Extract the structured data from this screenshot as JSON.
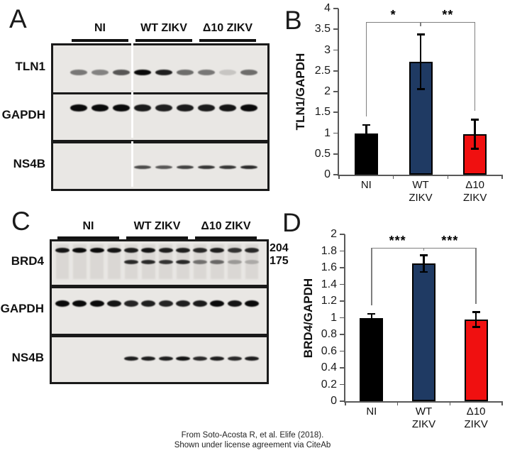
{
  "figure": {
    "footer_line1": "From Soto-Acosta R, et al. Elife (2018).",
    "footer_line2": "Shown under license agreement via CiteAb"
  },
  "colors": {
    "bar_black": "#000000",
    "bar_blue": "#1f3a63",
    "bar_red": "#f01010",
    "axis_gray": "#595959",
    "bracket_gray": "#7f7f7f",
    "blot_background": "#e9e7e4"
  },
  "panel_a": {
    "label": "A",
    "groups": [
      {
        "name": "NI",
        "lanes": 3
      },
      {
        "name": "WT ZIKV",
        "lanes": 3
      },
      {
        "name": "Δ10 ZIKV",
        "lanes": 3
      }
    ],
    "rows": [
      {
        "target": "TLN1",
        "band_rows": [
          {
            "y": 0.62,
            "h": 8,
            "intensities": [
              0.5,
              0.45,
              0.65,
              1.0,
              0.9,
              0.55,
              0.5,
              0.15,
              0.55
            ]
          }
        ]
      },
      {
        "target": "GAPDH",
        "band_rows": [
          {
            "y": 0.34,
            "h": 10,
            "intensities": [
              1.0,
              1.0,
              1.0,
              0.92,
              0.9,
              0.92,
              0.92,
              0.95,
              1.0
            ]
          }
        ]
      },
      {
        "target": "NS4B",
        "band_rows": [
          {
            "y": 0.57,
            "h": 5,
            "intensities": [
              0,
              0,
              0,
              0.7,
              0.65,
              0.75,
              0.8,
              0.8,
              0.85
            ]
          }
        ]
      }
    ]
  },
  "panel_c": {
    "label": "C",
    "mw_labels": [
      "204",
      "175"
    ],
    "groups": [
      {
        "name": "NI",
        "lanes": 4
      },
      {
        "name": "WT ZIKV",
        "lanes": 4
      },
      {
        "name": "Δ10 ZIKV",
        "lanes": 4
      }
    ],
    "rows": [
      {
        "target": "BRD4",
        "lane_streaks": true,
        "band_rows": [
          {
            "y": 0.26,
            "h": 7,
            "intensities": [
              0.95,
              1.0,
              1.0,
              0.95,
              0.9,
              0.95,
              0.9,
              0.9,
              0.85,
              0.9,
              0.8,
              0.85
            ]
          },
          {
            "y": 0.52,
            "h": 6,
            "intensities": [
              0,
              0,
              0,
              0,
              0.85,
              0.85,
              0.8,
              0.85,
              0.5,
              0.55,
              0.3,
              0.22
            ]
          }
        ]
      },
      {
        "target": "GAPDH",
        "band_rows": [
          {
            "y": 0.38,
            "h": 9,
            "intensities": [
              1.0,
              1.0,
              1.0,
              0.95,
              0.88,
              0.9,
              0.88,
              0.9,
              0.92,
              1.0,
              0.95,
              1.0
            ]
          }
        ]
      },
      {
        "target": "NS4B",
        "band_rows": [
          {
            "y": 0.52,
            "h": 6,
            "intensities": [
              0,
              0,
              0,
              0,
              0.9,
              0.9,
              0.9,
              0.95,
              0.85,
              0.9,
              0.85,
              0.9
            ]
          }
        ]
      }
    ]
  },
  "chart_data": [
    {
      "type": "bar",
      "panel": "B",
      "title": "",
      "categories": [
        "NI",
        "WT\nZIKV",
        "Δ10\nZIKV"
      ],
      "values": [
        1.0,
        2.72,
        0.98
      ],
      "errors": [
        0.2,
        0.66,
        0.35
      ],
      "bar_colors": [
        "#000000",
        "#1f3a63",
        "#f01010"
      ],
      "xlabel": "",
      "ylabel": "TLN1/GAPDH",
      "ylim": [
        0,
        4
      ],
      "ytick_step": 0.5,
      "grid": false,
      "legend": "none",
      "significance": [
        {
          "from": 0,
          "to": 1,
          "label": "*"
        },
        {
          "from": 1,
          "to": 2,
          "label": "**"
        }
      ]
    },
    {
      "type": "bar",
      "panel": "D",
      "title": "",
      "categories": [
        "NI",
        "WT\nZIKV",
        "Δ10\nZIKV"
      ],
      "values": [
        1.0,
        1.65,
        0.98
      ],
      "errors": [
        0.05,
        0.1,
        0.09
      ],
      "bar_colors": [
        "#000000",
        "#1f3a63",
        "#f01010"
      ],
      "xlabel": "",
      "ylabel": "BRD4/GAPDH",
      "ylim": [
        0,
        2
      ],
      "ytick_step": 0.2,
      "grid": false,
      "legend": "none",
      "significance": [
        {
          "from": 0,
          "to": 1,
          "label": "***"
        },
        {
          "from": 1,
          "to": 2,
          "label": "***"
        }
      ]
    }
  ]
}
